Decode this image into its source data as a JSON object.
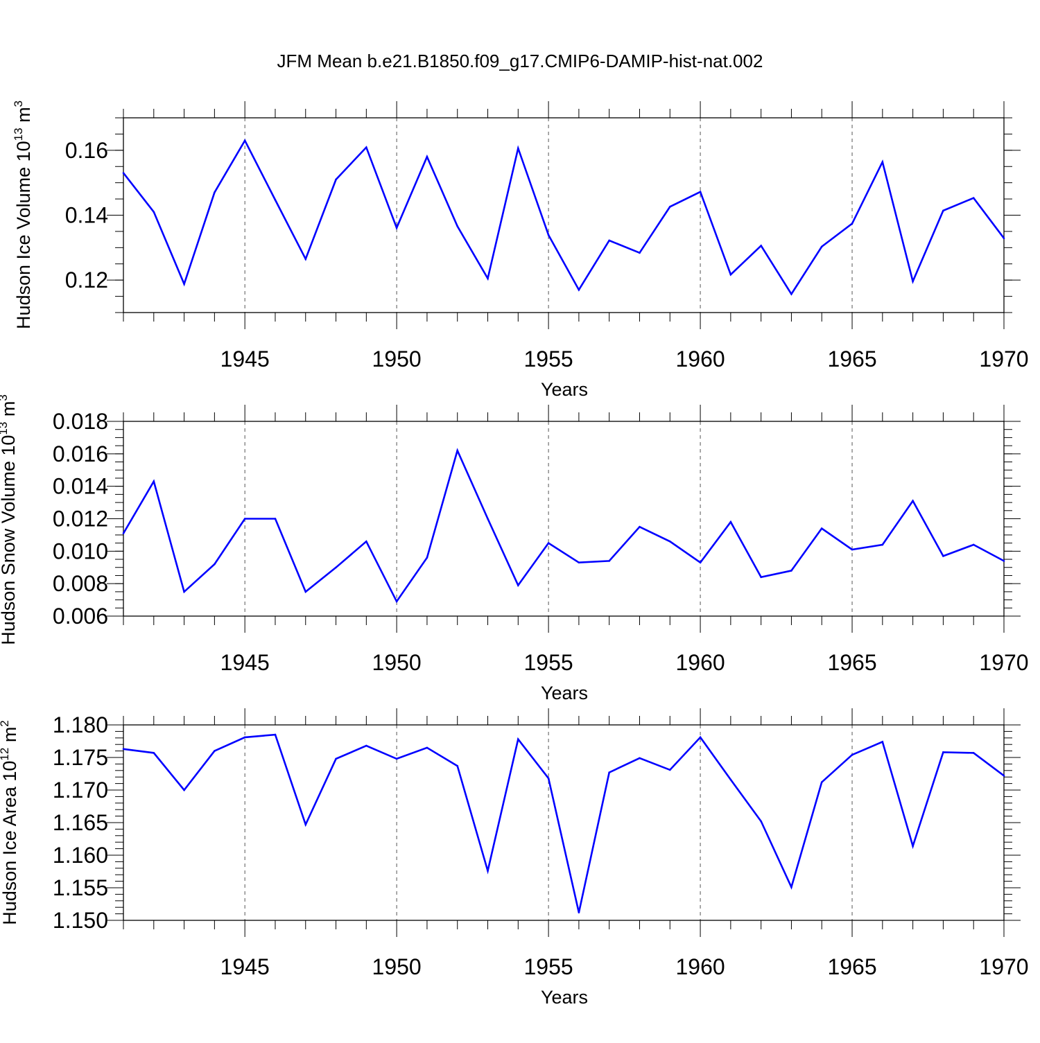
{
  "title": "JFM Mean b.e21.B1850.f09_g17.CMIP6-DAMIP-hist-nat.002",
  "line_color": "#0000ff",
  "chart_data": [
    {
      "type": "line",
      "ylabel": "Hudson Ice Volume 10",
      "ylabel_exp": "13",
      "ylabel_unit": " m",
      "ylabel_unit_exp": "3",
      "xlabel": "Years",
      "xlim": [
        1941,
        1970
      ],
      "ylim": [
        0.11,
        0.17
      ],
      "yticks": [
        0.12,
        0.14,
        0.16
      ],
      "ytick_labels": [
        "0.12",
        "0.14",
        "0.16"
      ],
      "yminor_step": 0.005,
      "xticks": [
        1945,
        1950,
        1955,
        1960,
        1965,
        1970
      ],
      "xtick_labels": [
        "1945",
        "1950",
        "1955",
        "1960",
        "1965",
        "1970"
      ],
      "grid": "dashed vertical at major x ticks",
      "x": [
        1941,
        1942,
        1943,
        1944,
        1945,
        1946,
        1947,
        1948,
        1949,
        1950,
        1951,
        1952,
        1953,
        1954,
        1955,
        1956,
        1957,
        1958,
        1959,
        1960,
        1961,
        1962,
        1963,
        1964,
        1965,
        1966,
        1967,
        1968,
        1969,
        1970
      ],
      "values": [
        0.153,
        0.141,
        0.1188,
        0.147,
        0.163,
        0.1447,
        0.1265,
        0.151,
        0.1609,
        0.1361,
        0.158,
        0.1366,
        0.1205,
        0.1606,
        0.1339,
        0.117,
        0.1322,
        0.1284,
        0.1426,
        0.1472,
        0.1217,
        0.1306,
        0.1157,
        0.1303,
        0.1374,
        0.1564,
        0.1196,
        0.1414,
        0.1453,
        0.1329
      ]
    },
    {
      "type": "line",
      "ylabel": "Hudson Snow Volume 10",
      "ylabel_exp": "13",
      "ylabel_unit": " m",
      "ylabel_unit_exp": "3",
      "xlabel": "Years",
      "xlim": [
        1941,
        1970
      ],
      "ylim": [
        0.006,
        0.018
      ],
      "yticks": [
        0.006,
        0.008,
        0.01,
        0.012,
        0.014,
        0.016,
        0.018
      ],
      "ytick_labels": [
        "0.006",
        "0.008",
        "0.010",
        "0.012",
        "0.014",
        "0.016",
        "0.018"
      ],
      "yminor_step": 0.0005,
      "xticks": [
        1945,
        1950,
        1955,
        1960,
        1965,
        1970
      ],
      "xtick_labels": [
        "1945",
        "1950",
        "1955",
        "1960",
        "1965",
        "1970"
      ],
      "grid": "dashed vertical at major x ticks",
      "x": [
        1941,
        1942,
        1943,
        1944,
        1945,
        1946,
        1947,
        1948,
        1949,
        1950,
        1951,
        1952,
        1953,
        1954,
        1955,
        1956,
        1957,
        1958,
        1959,
        1960,
        1961,
        1962,
        1963,
        1964,
        1965,
        1966,
        1967,
        1968,
        1969,
        1970
      ],
      "values": [
        0.0111,
        0.0143,
        0.0075,
        0.0092,
        0.012,
        0.012,
        0.0075,
        0.009,
        0.0106,
        0.0069,
        0.0096,
        0.0162,
        0.012,
        0.0079,
        0.0105,
        0.0093,
        0.0094,
        0.0115,
        0.0106,
        0.0093,
        0.0118,
        0.0084,
        0.0088,
        0.0114,
        0.0101,
        0.0104,
        0.0131,
        0.0097,
        0.0104,
        0.0094
      ]
    },
    {
      "type": "line",
      "ylabel": "Hudson Ice Area 10",
      "ylabel_exp": "12",
      "ylabel_unit": " m",
      "ylabel_unit_exp": "2",
      "xlabel": "Years",
      "xlim": [
        1941,
        1970
      ],
      "ylim": [
        1.15,
        1.18
      ],
      "yticks": [
        1.15,
        1.155,
        1.16,
        1.165,
        1.17,
        1.175,
        1.18
      ],
      "ytick_labels": [
        "1.150",
        "1.155",
        "1.160",
        "1.165",
        "1.170",
        "1.175",
        "1.180"
      ],
      "yminor_step": 0.001,
      "xticks": [
        1945,
        1950,
        1955,
        1960,
        1965,
        1970
      ],
      "xtick_labels": [
        "1945",
        "1950",
        "1955",
        "1960",
        "1965",
        "1970"
      ],
      "grid": "dashed vertical at major x ticks",
      "x": [
        1941,
        1942,
        1943,
        1944,
        1945,
        1946,
        1947,
        1948,
        1949,
        1950,
        1951,
        1952,
        1953,
        1954,
        1955,
        1956,
        1957,
        1958,
        1959,
        1960,
        1961,
        1962,
        1963,
        1964,
        1965,
        1966,
        1967,
        1968,
        1969,
        1970
      ],
      "values": [
        1.1763,
        1.1757,
        1.17,
        1.176,
        1.1781,
        1.1785,
        1.1647,
        1.1748,
        1.1768,
        1.1748,
        1.1765,
        1.1737,
        1.1576,
        1.1778,
        1.1718,
        1.1512,
        1.1727,
        1.1749,
        1.1731,
        1.1781,
        1.1716,
        1.1652,
        1.1551,
        1.1712,
        1.1754,
        1.1774,
        1.1614,
        1.1758,
        1.1757,
        1.1722
      ]
    }
  ]
}
